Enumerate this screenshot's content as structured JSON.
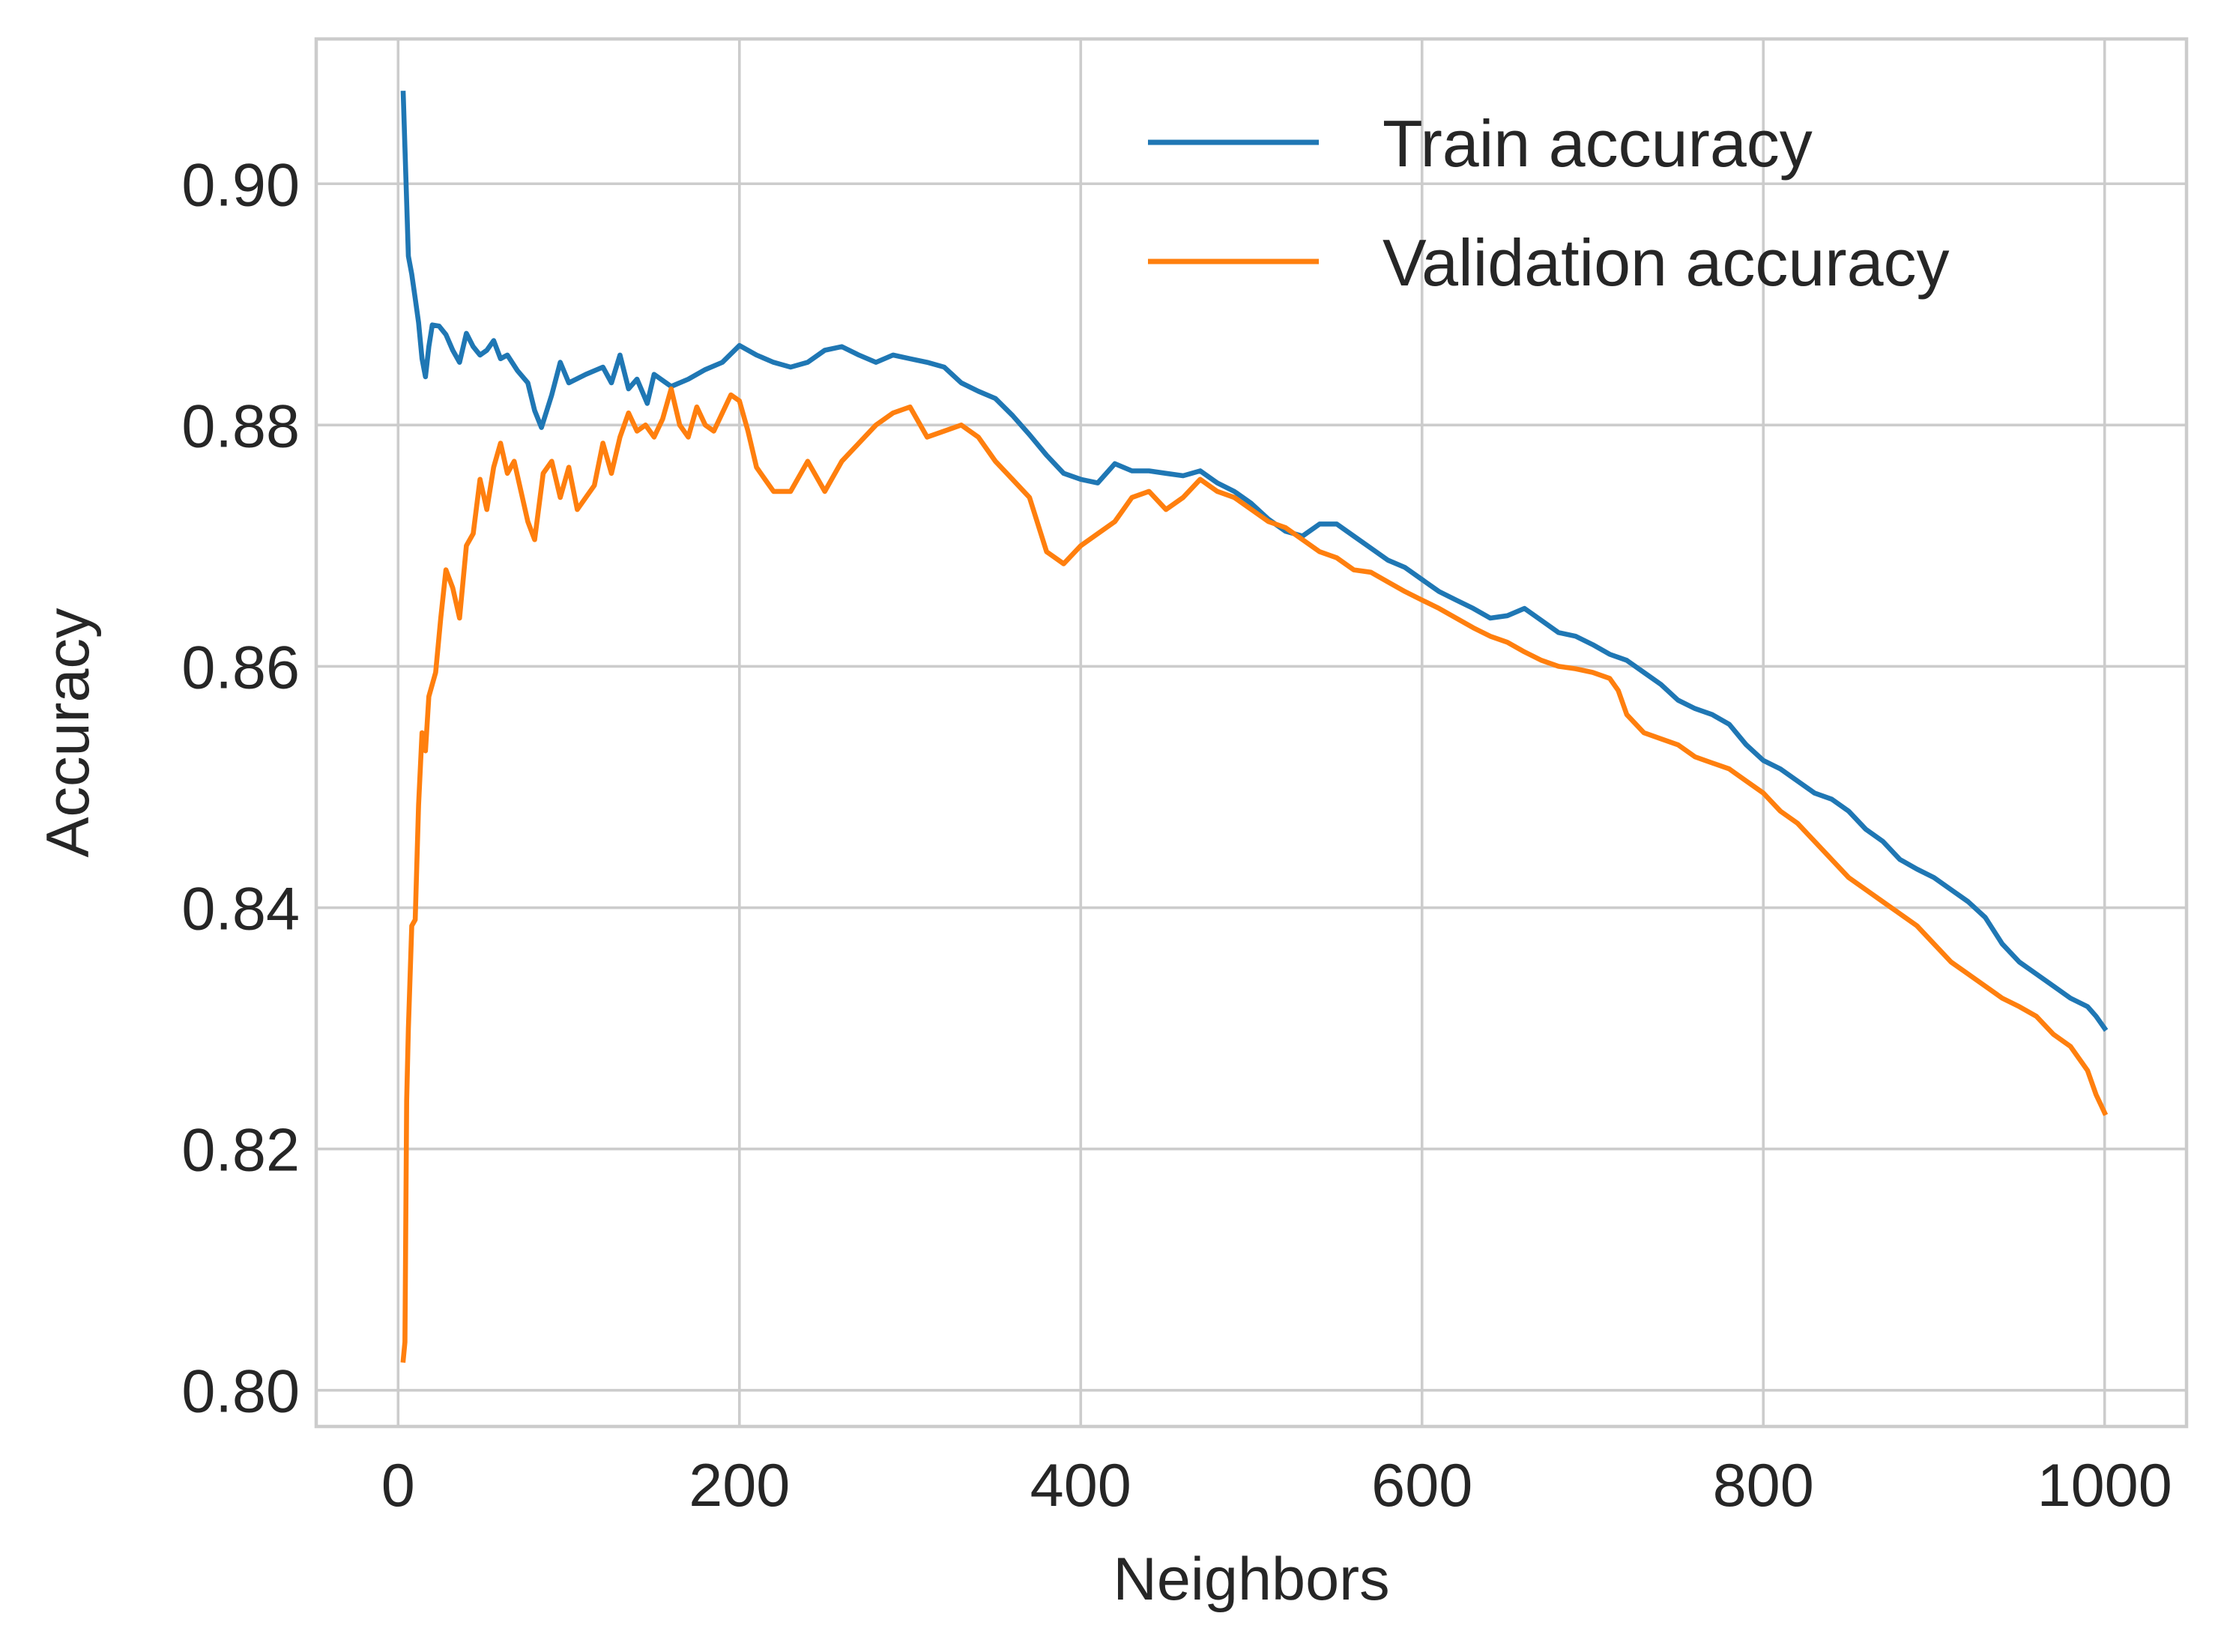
{
  "chart_data": {
    "type": "line",
    "title": "",
    "xlabel": "Neighbors",
    "ylabel": "Accuracy",
    "xlim": [
      -48,
      1048
    ],
    "ylim": [
      0.797,
      0.912
    ],
    "xticks": [
      0,
      200,
      400,
      600,
      800,
      1000
    ],
    "xtick_labels": [
      "0",
      "200",
      "400",
      "600",
      "800",
      "1000"
    ],
    "yticks": [
      0.8,
      0.82,
      0.84,
      0.86,
      0.88,
      0.9
    ],
    "ytick_labels": [
      "0.80",
      "0.82",
      "0.84",
      "0.86",
      "0.88",
      "0.90"
    ],
    "grid": true,
    "legend_position": "upper right",
    "series": [
      {
        "name": "Train accuracy",
        "color": "#1f77b4",
        "points": [
          [
            3,
            0.9075
          ],
          [
            4,
            0.903
          ],
          [
            6,
            0.894
          ],
          [
            8,
            0.8925
          ],
          [
            10,
            0.8905
          ],
          [
            12,
            0.8885
          ],
          [
            14,
            0.8855
          ],
          [
            16,
            0.884
          ],
          [
            18,
            0.8865
          ],
          [
            20,
            0.8883
          ],
          [
            24,
            0.8882
          ],
          [
            28,
            0.8875
          ],
          [
            32,
            0.8862
          ],
          [
            36,
            0.8852
          ],
          [
            40,
            0.8876
          ],
          [
            44,
            0.8865
          ],
          [
            48,
            0.8858
          ],
          [
            52,
            0.8862
          ],
          [
            56,
            0.887
          ],
          [
            60,
            0.8855
          ],
          [
            64,
            0.8858
          ],
          [
            70,
            0.8845
          ],
          [
            76,
            0.8835
          ],
          [
            80,
            0.8812
          ],
          [
            84,
            0.8798
          ],
          [
            90,
            0.8825
          ],
          [
            95,
            0.8852
          ],
          [
            100,
            0.8835
          ],
          [
            110,
            0.8842
          ],
          [
            120,
            0.8848
          ],
          [
            125,
            0.8835
          ],
          [
            130,
            0.8858
          ],
          [
            135,
            0.883
          ],
          [
            140,
            0.8838
          ],
          [
            146,
            0.8818
          ],
          [
            150,
            0.8842
          ],
          [
            160,
            0.8832
          ],
          [
            170,
            0.8838
          ],
          [
            180,
            0.8846
          ],
          [
            190,
            0.8852
          ],
          [
            200,
            0.8866
          ],
          [
            210,
            0.8858
          ],
          [
            220,
            0.8852
          ],
          [
            230,
            0.8848
          ],
          [
            240,
            0.8852
          ],
          [
            250,
            0.8862
          ],
          [
            260,
            0.8865
          ],
          [
            270,
            0.8858
          ],
          [
            280,
            0.8852
          ],
          [
            290,
            0.8858
          ],
          [
            300,
            0.8855
          ],
          [
            310,
            0.8852
          ],
          [
            320,
            0.8848
          ],
          [
            330,
            0.8835
          ],
          [
            340,
            0.8828
          ],
          [
            350,
            0.8822
          ],
          [
            360,
            0.8808
          ],
          [
            370,
            0.8792
          ],
          [
            380,
            0.8775
          ],
          [
            390,
            0.876
          ],
          [
            400,
            0.8755
          ],
          [
            410,
            0.8752
          ],
          [
            420,
            0.8768
          ],
          [
            430,
            0.8762
          ],
          [
            440,
            0.8762
          ],
          [
            450,
            0.876
          ],
          [
            460,
            0.8758
          ],
          [
            470,
            0.8762
          ],
          [
            480,
            0.8752
          ],
          [
            490,
            0.8745
          ],
          [
            500,
            0.8735
          ],
          [
            510,
            0.8722
          ],
          [
            520,
            0.8712
          ],
          [
            530,
            0.8708
          ],
          [
            540,
            0.8718
          ],
          [
            550,
            0.8718
          ],
          [
            560,
            0.8708
          ],
          [
            570,
            0.8698
          ],
          [
            580,
            0.8688
          ],
          [
            590,
            0.8682
          ],
          [
            600,
            0.8672
          ],
          [
            610,
            0.8662
          ],
          [
            620,
            0.8655
          ],
          [
            630,
            0.8648
          ],
          [
            640,
            0.864
          ],
          [
            650,
            0.8642
          ],
          [
            660,
            0.8648
          ],
          [
            670,
            0.8638
          ],
          [
            680,
            0.8628
          ],
          [
            690,
            0.8625
          ],
          [
            700,
            0.8618
          ],
          [
            710,
            0.861
          ],
          [
            720,
            0.8605
          ],
          [
            730,
            0.8595
          ],
          [
            740,
            0.8585
          ],
          [
            750,
            0.8572
          ],
          [
            760,
            0.8565
          ],
          [
            770,
            0.856
          ],
          [
            780,
            0.8552
          ],
          [
            790,
            0.8535
          ],
          [
            800,
            0.8522
          ],
          [
            810,
            0.8515
          ],
          [
            820,
            0.8505
          ],
          [
            830,
            0.8495
          ],
          [
            840,
            0.849
          ],
          [
            850,
            0.848
          ],
          [
            860,
            0.8465
          ],
          [
            870,
            0.8455
          ],
          [
            880,
            0.844
          ],
          [
            890,
            0.8432
          ],
          [
            900,
            0.8425
          ],
          [
            910,
            0.8415
          ],
          [
            920,
            0.8405
          ],
          [
            930,
            0.8392
          ],
          [
            940,
            0.837
          ],
          [
            950,
            0.8355
          ],
          [
            960,
            0.8345
          ],
          [
            970,
            0.8335
          ],
          [
            980,
            0.8325
          ],
          [
            990,
            0.8318
          ],
          [
            995,
            0.831
          ],
          [
            1000,
            0.83
          ]
        ]
      },
      {
        "name": "Validation accuracy",
        "color": "#ff7f0e",
        "points": [
          [
            3,
            0.8025
          ],
          [
            4,
            0.804
          ],
          [
            5,
            0.824
          ],
          [
            6,
            0.83
          ],
          [
            8,
            0.8385
          ],
          [
            10,
            0.839
          ],
          [
            12,
            0.8485
          ],
          [
            14,
            0.8545
          ],
          [
            16,
            0.853
          ],
          [
            18,
            0.8575
          ],
          [
            22,
            0.8595
          ],
          [
            25,
            0.864
          ],
          [
            28,
            0.868
          ],
          [
            32,
            0.8665
          ],
          [
            36,
            0.864
          ],
          [
            40,
            0.87
          ],
          [
            44,
            0.871
          ],
          [
            48,
            0.8755
          ],
          [
            52,
            0.873
          ],
          [
            56,
            0.8765
          ],
          [
            60,
            0.8785
          ],
          [
            64,
            0.876
          ],
          [
            68,
            0.877
          ],
          [
            72,
            0.8745
          ],
          [
            76,
            0.872
          ],
          [
            80,
            0.8705
          ],
          [
            85,
            0.876
          ],
          [
            90,
            0.877
          ],
          [
            95,
            0.874
          ],
          [
            100,
            0.8765
          ],
          [
            105,
            0.873
          ],
          [
            110,
            0.874
          ],
          [
            115,
            0.875
          ],
          [
            120,
            0.8785
          ],
          [
            125,
            0.876
          ],
          [
            130,
            0.879
          ],
          [
            135,
            0.881
          ],
          [
            140,
            0.8795
          ],
          [
            145,
            0.88
          ],
          [
            150,
            0.879
          ],
          [
            155,
            0.8805
          ],
          [
            160,
            0.883
          ],
          [
            165,
            0.88
          ],
          [
            170,
            0.879
          ],
          [
            175,
            0.8815
          ],
          [
            180,
            0.88
          ],
          [
            185,
            0.8795
          ],
          [
            190,
            0.881
          ],
          [
            195,
            0.8825
          ],
          [
            200,
            0.882
          ],
          [
            205,
            0.8795
          ],
          [
            210,
            0.8765
          ],
          [
            215,
            0.8755
          ],
          [
            220,
            0.8745
          ],
          [
            230,
            0.8745
          ],
          [
            240,
            0.877
          ],
          [
            250,
            0.8745
          ],
          [
            260,
            0.877
          ],
          [
            270,
            0.8785
          ],
          [
            280,
            0.88
          ],
          [
            290,
            0.881
          ],
          [
            300,
            0.8815
          ],
          [
            310,
            0.879
          ],
          [
            320,
            0.8795
          ],
          [
            330,
            0.88
          ],
          [
            340,
            0.879
          ],
          [
            350,
            0.877
          ],
          [
            360,
            0.8755
          ],
          [
            370,
            0.874
          ],
          [
            380,
            0.8695
          ],
          [
            390,
            0.8685
          ],
          [
            400,
            0.87
          ],
          [
            410,
            0.871
          ],
          [
            420,
            0.872
          ],
          [
            430,
            0.874
          ],
          [
            440,
            0.8745
          ],
          [
            450,
            0.873
          ],
          [
            460,
            0.874
          ],
          [
            470,
            0.8755
          ],
          [
            480,
            0.8745
          ],
          [
            490,
            0.874
          ],
          [
            500,
            0.873
          ],
          [
            510,
            0.872
          ],
          [
            520,
            0.8715
          ],
          [
            530,
            0.8705
          ],
          [
            540,
            0.8695
          ],
          [
            550,
            0.869
          ],
          [
            560,
            0.868
          ],
          [
            570,
            0.8678
          ],
          [
            580,
            0.867
          ],
          [
            590,
            0.8662
          ],
          [
            600,
            0.8655
          ],
          [
            610,
            0.8648
          ],
          [
            620,
            0.864
          ],
          [
            630,
            0.8632
          ],
          [
            640,
            0.8625
          ],
          [
            650,
            0.862
          ],
          [
            660,
            0.8612
          ],
          [
            670,
            0.8605
          ],
          [
            680,
            0.86
          ],
          [
            690,
            0.8598
          ],
          [
            700,
            0.8595
          ],
          [
            710,
            0.859
          ],
          [
            715,
            0.858
          ],
          [
            720,
            0.856
          ],
          [
            730,
            0.8545
          ],
          [
            740,
            0.854
          ],
          [
            750,
            0.8535
          ],
          [
            760,
            0.8525
          ],
          [
            770,
            0.852
          ],
          [
            780,
            0.8515
          ],
          [
            790,
            0.8505
          ],
          [
            800,
            0.8495
          ],
          [
            810,
            0.848
          ],
          [
            820,
            0.847
          ],
          [
            830,
            0.8455
          ],
          [
            840,
            0.844
          ],
          [
            850,
            0.8425
          ],
          [
            860,
            0.8415
          ],
          [
            870,
            0.8405
          ],
          [
            880,
            0.8395
          ],
          [
            890,
            0.8385
          ],
          [
            900,
            0.837
          ],
          [
            910,
            0.8355
          ],
          [
            920,
            0.8345
          ],
          [
            930,
            0.8335
          ],
          [
            940,
            0.8325
          ],
          [
            950,
            0.8318
          ],
          [
            960,
            0.831
          ],
          [
            970,
            0.8295
          ],
          [
            980,
            0.8285
          ],
          [
            990,
            0.8265
          ],
          [
            995,
            0.8245
          ],
          [
            1000,
            0.823
          ]
        ]
      }
    ]
  }
}
